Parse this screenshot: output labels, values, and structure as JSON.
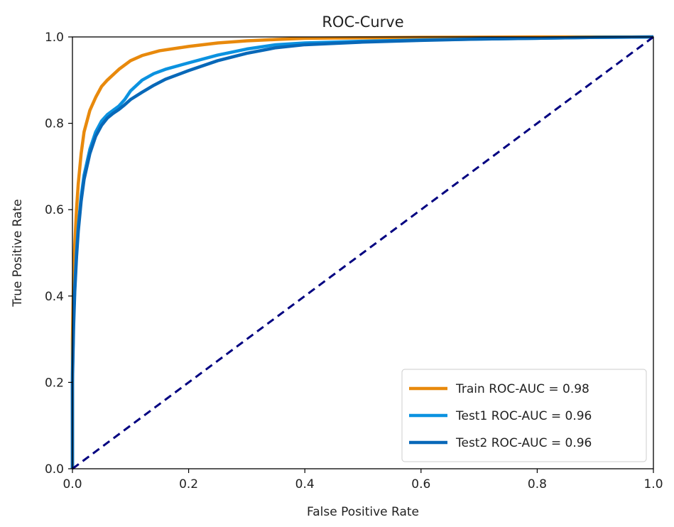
{
  "chart_data": {
    "type": "line",
    "title": "ROC-Curve",
    "xlabel": "False Positive Rate",
    "ylabel": "True Positive Rate",
    "xlim": [
      0.0,
      1.0
    ],
    "ylim": [
      0.0,
      1.0
    ],
    "x_ticks": [
      "0.0",
      "0.2",
      "0.4",
      "0.6",
      "0.8",
      "1.0"
    ],
    "y_ticks": [
      "0.0",
      "0.2",
      "0.4",
      "0.6",
      "0.8",
      "1.0"
    ],
    "grid": false,
    "legend_position": "bottom-right",
    "series": [
      {
        "name": "Train ROC-AUC = 0.98",
        "color": "#E8890C",
        "style": "solid",
        "points": [
          [
            0.0,
            0.0
          ],
          [
            0.0,
            0.3
          ],
          [
            0.002,
            0.45
          ],
          [
            0.004,
            0.52
          ],
          [
            0.007,
            0.6
          ],
          [
            0.01,
            0.66
          ],
          [
            0.015,
            0.73
          ],
          [
            0.02,
            0.78
          ],
          [
            0.03,
            0.83
          ],
          [
            0.04,
            0.86
          ],
          [
            0.05,
            0.885
          ],
          [
            0.06,
            0.9
          ],
          [
            0.08,
            0.925
          ],
          [
            0.1,
            0.945
          ],
          [
            0.12,
            0.957
          ],
          [
            0.15,
            0.968
          ],
          [
            0.2,
            0.978
          ],
          [
            0.25,
            0.986
          ],
          [
            0.3,
            0.991
          ],
          [
            0.35,
            0.994
          ],
          [
            0.4,
            0.997
          ],
          [
            0.5,
            0.998
          ],
          [
            0.6,
            0.999
          ],
          [
            0.8,
            1.0
          ],
          [
            1.0,
            1.0
          ]
        ]
      },
      {
        "name": "Test1 ROC-AUC = 0.96",
        "color": "#0B92E0",
        "style": "solid",
        "points": [
          [
            0.0,
            0.0
          ],
          [
            0.0,
            0.22
          ],
          [
            0.002,
            0.35
          ],
          [
            0.004,
            0.42
          ],
          [
            0.007,
            0.5
          ],
          [
            0.01,
            0.56
          ],
          [
            0.015,
            0.63
          ],
          [
            0.02,
            0.68
          ],
          [
            0.03,
            0.74
          ],
          [
            0.04,
            0.78
          ],
          [
            0.05,
            0.805
          ],
          [
            0.06,
            0.82
          ],
          [
            0.07,
            0.83
          ],
          [
            0.08,
            0.84
          ],
          [
            0.09,
            0.855
          ],
          [
            0.1,
            0.875
          ],
          [
            0.12,
            0.9
          ],
          [
            0.14,
            0.915
          ],
          [
            0.16,
            0.925
          ],
          [
            0.2,
            0.94
          ],
          [
            0.25,
            0.958
          ],
          [
            0.3,
            0.972
          ],
          [
            0.35,
            0.982
          ],
          [
            0.4,
            0.986
          ],
          [
            0.5,
            0.99
          ],
          [
            0.6,
            0.993
          ],
          [
            0.7,
            0.995
          ],
          [
            0.8,
            0.997
          ],
          [
            0.9,
            0.999
          ],
          [
            1.0,
            1.0
          ]
        ]
      },
      {
        "name": "Test2 ROC-AUC = 0.96",
        "color": "#0868B8",
        "style": "solid",
        "points": [
          [
            0.0,
            0.0
          ],
          [
            0.0,
            0.2
          ],
          [
            0.002,
            0.33
          ],
          [
            0.004,
            0.41
          ],
          [
            0.007,
            0.49
          ],
          [
            0.01,
            0.55
          ],
          [
            0.015,
            0.62
          ],
          [
            0.02,
            0.67
          ],
          [
            0.03,
            0.73
          ],
          [
            0.04,
            0.77
          ],
          [
            0.05,
            0.795
          ],
          [
            0.06,
            0.812
          ],
          [
            0.07,
            0.823
          ],
          [
            0.08,
            0.832
          ],
          [
            0.09,
            0.843
          ],
          [
            0.1,
            0.855
          ],
          [
            0.12,
            0.872
          ],
          [
            0.14,
            0.888
          ],
          [
            0.16,
            0.902
          ],
          [
            0.2,
            0.922
          ],
          [
            0.25,
            0.945
          ],
          [
            0.3,
            0.962
          ],
          [
            0.35,
            0.975
          ],
          [
            0.4,
            0.982
          ],
          [
            0.5,
            0.988
          ],
          [
            0.6,
            0.992
          ],
          [
            0.7,
            0.995
          ],
          [
            0.8,
            0.997
          ],
          [
            0.9,
            0.999
          ],
          [
            1.0,
            1.0
          ]
        ]
      },
      {
        "name": "",
        "color": "#000080",
        "style": "dashed",
        "points": [
          [
            0.0,
            0.0
          ],
          [
            1.0,
            1.0
          ]
        ]
      }
    ]
  }
}
